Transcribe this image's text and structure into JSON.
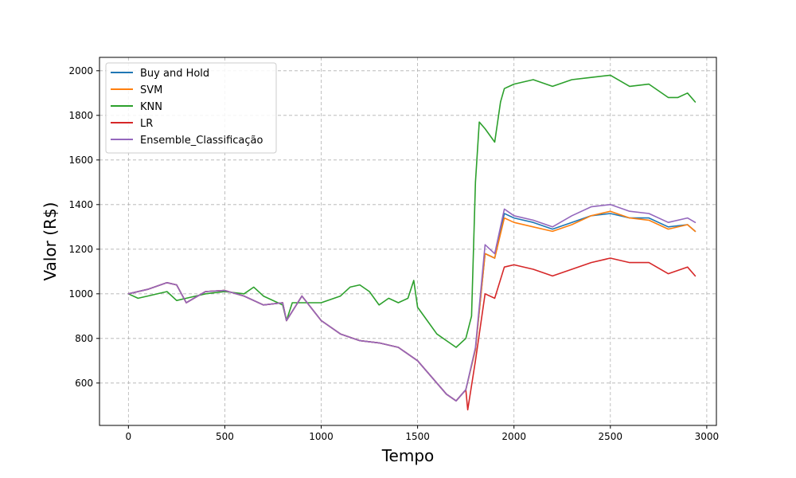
{
  "chart_data": {
    "type": "line",
    "title": "",
    "xlabel": "Tempo",
    "ylabel": "Valor (R$)",
    "xlim": [
      -150,
      3050
    ],
    "ylim": [
      410,
      2060
    ],
    "xticks": [
      0,
      500,
      1000,
      1500,
      2000,
      2500,
      3000
    ],
    "yticks": [
      600,
      800,
      1000,
      1200,
      1400,
      1600,
      1800,
      2000
    ],
    "grid": true,
    "legend_position": "top-left",
    "series": [
      {
        "name": "Buy and Hold",
        "color": "#1f77b4",
        "x": [
          0,
          100,
          200,
          250,
          300,
          400,
          500,
          600,
          700,
          800,
          820,
          900,
          1000,
          1100,
          1200,
          1300,
          1400,
          1500,
          1600,
          1650,
          1700,
          1750,
          1800,
          1850,
          1900,
          1950,
          2000,
          2100,
          2200,
          2300,
          2400,
          2500,
          2600,
          2700,
          2800,
          2900,
          2940
        ],
        "values": [
          1000,
          1020,
          1050,
          1040,
          960,
          1010,
          1015,
          990,
          950,
          960,
          880,
          990,
          880,
          820,
          790,
          780,
          760,
          700,
          600,
          550,
          520,
          570,
          750,
          1180,
          1160,
          1360,
          1340,
          1320,
          1290,
          1320,
          1350,
          1360,
          1340,
          1340,
          1300,
          1310,
          1280
        ]
      },
      {
        "name": "SVM",
        "color": "#ff7f0e",
        "x": [
          0,
          100,
          200,
          250,
          300,
          400,
          500,
          600,
          700,
          800,
          820,
          900,
          1000,
          1100,
          1200,
          1300,
          1400,
          1500,
          1600,
          1650,
          1700,
          1750,
          1800,
          1850,
          1900,
          1950,
          2000,
          2100,
          2200,
          2300,
          2400,
          2500,
          2600,
          2700,
          2800,
          2900,
          2940
        ],
        "values": [
          1000,
          1020,
          1050,
          1040,
          960,
          1010,
          1015,
          990,
          950,
          960,
          880,
          990,
          880,
          820,
          790,
          780,
          760,
          700,
          600,
          550,
          520,
          570,
          750,
          1180,
          1160,
          1340,
          1320,
          1300,
          1280,
          1310,
          1350,
          1370,
          1340,
          1330,
          1290,
          1310,
          1280
        ]
      },
      {
        "name": "KNN",
        "color": "#2ca02c",
        "x": [
          0,
          50,
          100,
          200,
          250,
          300,
          400,
          500,
          600,
          650,
          700,
          800,
          820,
          850,
          900,
          1000,
          1100,
          1150,
          1200,
          1250,
          1300,
          1350,
          1400,
          1450,
          1480,
          1500,
          1550,
          1600,
          1650,
          1700,
          1750,
          1780,
          1800,
          1820,
          1850,
          1900,
          1930,
          1950,
          2000,
          2100,
          2200,
          2300,
          2400,
          2500,
          2600,
          2700,
          2800,
          2850,
          2900,
          2940
        ],
        "values": [
          1000,
          980,
          990,
          1010,
          970,
          980,
          1000,
          1010,
          1000,
          1030,
          990,
          950,
          880,
          960,
          960,
          960,
          990,
          1030,
          1040,
          1010,
          950,
          980,
          960,
          980,
          1060,
          940,
          880,
          820,
          790,
          760,
          800,
          900,
          1500,
          1770,
          1740,
          1680,
          1860,
          1920,
          1940,
          1960,
          1930,
          1960,
          1970,
          1980,
          1930,
          1940,
          1880,
          1880,
          1900,
          1860
        ]
      },
      {
        "name": "LR",
        "color": "#d62728",
        "x": [
          0,
          100,
          200,
          250,
          300,
          400,
          500,
          600,
          700,
          800,
          820,
          900,
          1000,
          1100,
          1200,
          1300,
          1400,
          1500,
          1600,
          1650,
          1700,
          1750,
          1760,
          1800,
          1850,
          1900,
          1950,
          2000,
          2100,
          2200,
          2300,
          2400,
          2500,
          2600,
          2700,
          2800,
          2900,
          2940
        ],
        "values": [
          1000,
          1020,
          1050,
          1040,
          960,
          1010,
          1015,
          990,
          950,
          960,
          880,
          990,
          880,
          820,
          790,
          780,
          760,
          700,
          600,
          550,
          520,
          570,
          480,
          700,
          1000,
          980,
          1120,
          1130,
          1110,
          1080,
          1110,
          1140,
          1160,
          1140,
          1140,
          1090,
          1120,
          1080
        ]
      },
      {
        "name": "Ensemble_Classificação",
        "color": "#9467bd",
        "x": [
          0,
          100,
          200,
          250,
          300,
          400,
          500,
          600,
          700,
          800,
          820,
          900,
          1000,
          1100,
          1200,
          1300,
          1400,
          1500,
          1600,
          1650,
          1700,
          1750,
          1800,
          1850,
          1900,
          1950,
          2000,
          2100,
          2200,
          2300,
          2400,
          2500,
          2600,
          2700,
          2800,
          2900,
          2940
        ],
        "values": [
          1000,
          1020,
          1050,
          1040,
          960,
          1010,
          1015,
          990,
          950,
          960,
          880,
          990,
          880,
          820,
          790,
          780,
          760,
          700,
          600,
          550,
          520,
          570,
          760,
          1220,
          1180,
          1380,
          1350,
          1330,
          1300,
          1350,
          1390,
          1400,
          1370,
          1360,
          1320,
          1340,
          1320
        ]
      }
    ]
  }
}
